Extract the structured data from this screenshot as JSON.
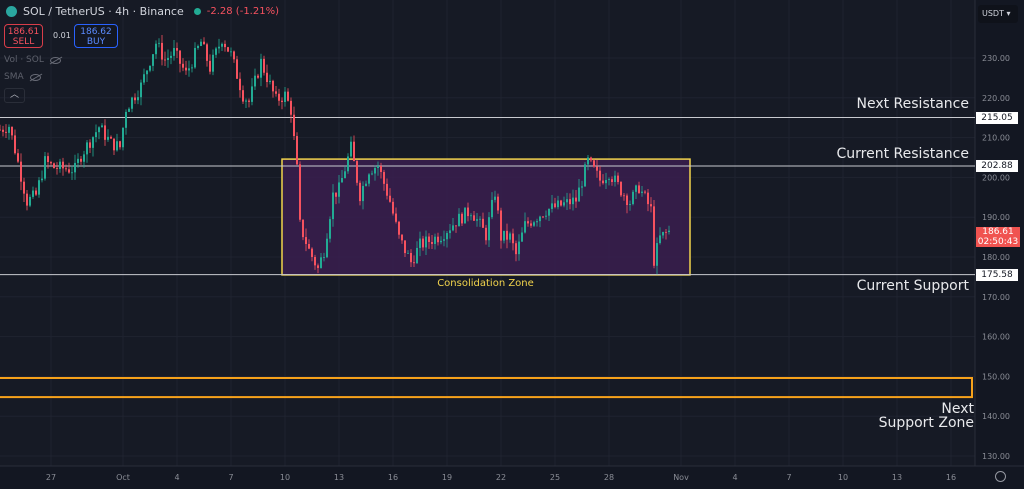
{
  "header": {
    "symbol": "SOL / TetherUS · 4h · Binance",
    "change": "-2.28 (-1.21%)",
    "market_status_color": "#22ab94"
  },
  "trade": {
    "sell_price": "186.61",
    "sell_label": "SELL",
    "spread": "0.01",
    "buy_price": "186.62",
    "buy_label": "BUY"
  },
  "indicators": [
    {
      "label": "Vol · SOL"
    },
    {
      "label": "SMA"
    }
  ],
  "currency": "USDT ▾",
  "annotations": {
    "next_resistance": "Next Resistance",
    "current_resistance": "Current Resistance",
    "current_support": "Current Support",
    "next_support_line1": "Next",
    "next_support_line2": "Support Zone",
    "consolidation": "Consolidation Zone"
  },
  "colors": {
    "up": "#22ab94",
    "down": "#f7525f",
    "zone_border": "#f2d44c",
    "zone_fill": "#3a1f4f",
    "support_zone_border": "#f7a21b"
  },
  "chart_data": {
    "type": "candlestick",
    "title": "SOL / TetherUS · 4h · Binance",
    "ylim": [
      125,
      240
    ],
    "y_ticks": [
      130,
      140,
      150,
      160,
      170,
      180,
      190,
      200,
      210,
      220,
      230
    ],
    "y_tick_labels": [
      "130.00",
      "140.00",
      "150.00",
      "160.00",
      "170.00",
      "180.00",
      "190.00",
      "200.00",
      "210.00",
      "220.00",
      "230.00"
    ],
    "x_ticks": [
      {
        "date": "09-27 00",
        "label": "27"
      },
      {
        "date": "10-01 00",
        "label": "Oct"
      },
      {
        "date": "10-04 00",
        "label": "4"
      },
      {
        "date": "10-07 00",
        "label": "7"
      },
      {
        "date": "10-10 00",
        "label": "10"
      },
      {
        "date": "10-13 00",
        "label": "13"
      },
      {
        "date": "10-16 00",
        "label": "16"
      },
      {
        "date": "10-19 00",
        "label": "19"
      },
      {
        "date": "10-22 00",
        "label": "22"
      },
      {
        "date": "10-25 00",
        "label": "25"
      },
      {
        "date": "10-28 00",
        "label": "28"
      },
      {
        "date": "11-01 00",
        "label": "Nov"
      },
      {
        "date": "11-04 00",
        "label": "4"
      },
      {
        "date": "11-07 00",
        "label": "7"
      },
      {
        "date": "11-10 00",
        "label": "10"
      },
      {
        "date": "11-13 00",
        "label": "13"
      },
      {
        "date": "11-16 00",
        "label": "16"
      }
    ],
    "close_path": [
      [
        "09-24 04",
        212
      ],
      [
        "09-24 16",
        213
      ],
      [
        "09-25 00",
        207
      ],
      [
        "09-25 16",
        194
      ],
      [
        "09-26 04",
        195.5
      ],
      [
        "09-26 16",
        204
      ],
      [
        "09-27 04",
        202.5
      ],
      [
        "09-28 08",
        202
      ],
      [
        "09-28 16",
        205.6
      ],
      [
        "09-29 16",
        212.7
      ],
      [
        "09-30 08",
        208.6
      ],
      [
        "09-30 20",
        207.6
      ],
      [
        "10-01 04",
        217.4
      ],
      [
        "10-02 00",
        223
      ],
      [
        "10-02 20",
        233.8
      ],
      [
        "10-03 08",
        229.5
      ],
      [
        "10-03 20",
        231.5
      ],
      [
        "10-04 12",
        226
      ],
      [
        "10-05 08",
        234
      ],
      [
        "10-05 20",
        227.5
      ],
      [
        "10-06 12",
        235
      ],
      [
        "10-07 00",
        230.8
      ],
      [
        "10-07 16",
        220.7
      ],
      [
        "10-08 00",
        219
      ],
      [
        "10-08 16",
        229
      ],
      [
        "10-09 12",
        219.4
      ],
      [
        "10-10 00",
        220.7
      ],
      [
        "10-10 08",
        217
      ],
      [
        "10-10 16",
        202
      ],
      [
        "10-10 20",
        188
      ],
      [
        "10-11 08",
        181.7
      ],
      [
        "10-11 20",
        177
      ],
      [
        "10-12 04",
        181.7
      ],
      [
        "10-12 16",
        195.6
      ],
      [
        "10-13 00",
        197
      ],
      [
        "10-13 16",
        207.4
      ],
      [
        "10-14 04",
        195.6
      ],
      [
        "10-14 16",
        202
      ],
      [
        "10-15 04",
        203
      ],
      [
        "10-15 20",
        194
      ],
      [
        "10-16 08",
        184.8
      ],
      [
        "10-17 00",
        178.7
      ],
      [
        "10-17 12",
        183
      ],
      [
        "10-18 16",
        185.5
      ],
      [
        "10-19 12",
        189
      ],
      [
        "10-20 08",
        191.8
      ],
      [
        "10-21 04",
        185.5
      ],
      [
        "10-21 16",
        196.3
      ],
      [
        "10-22 00",
        185
      ],
      [
        "10-22 12",
        185
      ],
      [
        "10-22 20",
        180.5
      ],
      [
        "10-23 08",
        188
      ],
      [
        "10-24 12",
        191.8
      ],
      [
        "10-25 08",
        193
      ],
      [
        "10-26 04",
        194.3
      ],
      [
        "10-26 20",
        204
      ],
      [
        "10-27 12",
        199.3
      ],
      [
        "10-28 00",
        201.3
      ],
      [
        "10-28 16",
        196.8
      ],
      [
        "10-29 04",
        193.8
      ],
      [
        "10-29 16",
        197.6
      ],
      [
        "10-30 08",
        191.8
      ],
      [
        "10-30 12",
        179.2
      ],
      [
        "10-30 20",
        184.8
      ],
      [
        "10-31 08",
        186.61
      ]
    ],
    "horizontal_lines": [
      {
        "price": 215.05,
        "label": "215.05"
      },
      {
        "price": 202.88,
        "label": "202.88"
      },
      {
        "price": 175.58,
        "label": "175.58"
      }
    ],
    "consolidation_zone": {
      "from": "10-09 20",
      "to": "11-01 12",
      "top": 204.6,
      "bottom": 175.5
    },
    "support_zone": {
      "top": 149.6,
      "bottom": 144.8
    },
    "last_price": "186.61",
    "countdown": "02:50:43"
  }
}
